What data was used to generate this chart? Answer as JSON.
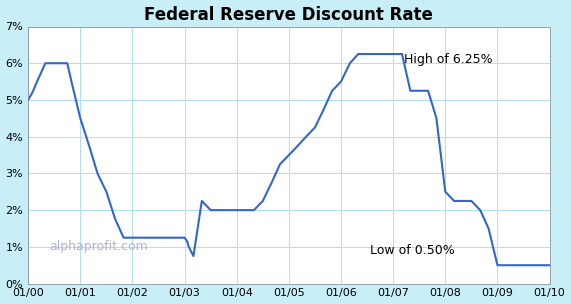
{
  "title": "Federal Reserve Discount Rate",
  "outer_background_color": "#c8eef8",
  "plot_background_color": "#ffffff",
  "line_color": "#3366cc",
  "line_width": 1.5,
  "watermark": "alphaprofit.com",
  "watermark_color": "#aaaacc",
  "annotation_high_text": "High of 6.25%",
  "annotation_low_text": "Low of 0.50%",
  "ylim": [
    0,
    7
  ],
  "yticks": [
    0,
    1,
    2,
    3,
    4,
    5,
    6,
    7
  ],
  "ytick_labels": [
    "0%",
    "1%",
    "2%",
    "3%",
    "4%",
    "5%",
    "6%",
    "7%"
  ],
  "xtick_labels": [
    "01/00",
    "01/01",
    "01/02",
    "01/03",
    "01/04",
    "01/05",
    "01/06",
    "01/07",
    "01/08",
    "01/09",
    "01/10"
  ],
  "x_values": [
    0.0,
    0.08,
    0.17,
    0.25,
    0.33,
    0.42,
    0.5,
    0.58,
    0.67,
    0.75,
    0.83,
    1.0,
    1.17,
    1.33,
    1.5,
    1.67,
    1.83,
    2.0,
    2.17,
    2.33,
    2.5,
    2.67,
    2.83,
    3.0,
    3.05,
    3.08,
    3.17,
    3.33,
    3.5,
    3.67,
    3.83,
    4.0,
    4.17,
    4.33,
    4.5,
    4.67,
    4.83,
    5.0,
    5.17,
    5.33,
    5.5,
    5.67,
    5.83,
    6.0,
    6.17,
    6.33,
    6.5,
    6.67,
    6.83,
    7.0,
    7.17,
    7.33,
    7.5,
    7.67,
    7.83,
    8.0,
    8.17,
    8.33,
    8.5,
    8.67,
    8.83,
    9.0,
    9.17,
    9.33,
    9.5,
    9.67,
    9.83,
    10.0
  ],
  "y_values": [
    5.0,
    5.2,
    5.5,
    5.75,
    6.0,
    6.0,
    6.0,
    6.0,
    6.0,
    6.0,
    5.5,
    4.5,
    3.75,
    3.0,
    2.5,
    1.75,
    1.25,
    1.25,
    1.25,
    1.25,
    1.25,
    1.25,
    1.25,
    1.25,
    1.15,
    1.0,
    0.75,
    2.25,
    2.0,
    2.0,
    2.0,
    2.0,
    2.0,
    2.0,
    2.25,
    2.75,
    3.25,
    3.5,
    3.75,
    4.0,
    4.25,
    4.75,
    5.25,
    5.5,
    6.0,
    6.25,
    6.25,
    6.25,
    6.25,
    6.25,
    6.25,
    5.25,
    5.25,
    5.25,
    4.5,
    2.5,
    2.25,
    2.25,
    2.25,
    2.0,
    1.5,
    0.5,
    0.5,
    0.5,
    0.5,
    0.5,
    0.5,
    0.5
  ],
  "grid_color": "#b0e0f0",
  "title_fontsize": 12,
  "tick_fontsize": 8,
  "annotation_fontsize": 9
}
